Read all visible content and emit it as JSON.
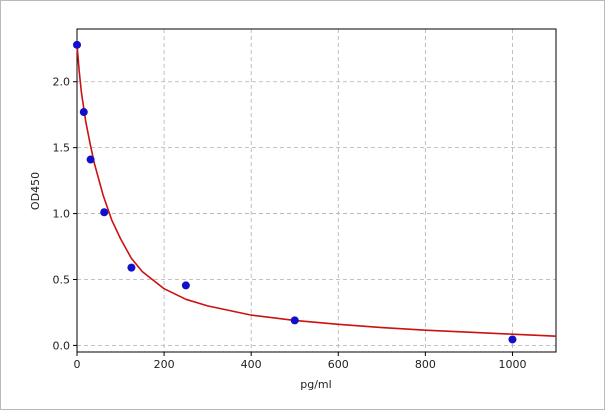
{
  "chart_data": {
    "type": "scatter",
    "title": "",
    "xlabel": "pg/ml",
    "ylabel": "OD450",
    "xlim": [
      0,
      1100
    ],
    "ylim": [
      -0.05,
      2.4
    ],
    "x_ticks": [
      0,
      200,
      400,
      600,
      800,
      1000
    ],
    "y_ticks": [
      0.0,
      0.5,
      1.0,
      1.5,
      2.0
    ],
    "x_tick_labels": [
      "0",
      "200",
      "400",
      "600",
      "800",
      "1000"
    ],
    "y_tick_labels": [
      "0.0",
      "0.5",
      "1.0",
      "1.5",
      "2.0"
    ],
    "grid": true,
    "grid_style": "dashed",
    "series": [
      {
        "type": "scatter",
        "color": "#1010cc",
        "x": [
          0,
          15.6,
          31.25,
          62.5,
          125,
          250,
          500,
          1000
        ],
        "y": [
          2.28,
          1.77,
          1.41,
          1.01,
          0.59,
          0.455,
          0.19,
          0.045
        ]
      },
      {
        "type": "line",
        "color": "#cc1111",
        "x": [
          0,
          5,
          10,
          20,
          30,
          40,
          60,
          80,
          100,
          125,
          150,
          200,
          250,
          300,
          400,
          500,
          600,
          700,
          800,
          900,
          1000,
          1100
        ],
        "y": [
          2.28,
          2.08,
          1.92,
          1.7,
          1.53,
          1.38,
          1.14,
          0.95,
          0.81,
          0.66,
          0.56,
          0.43,
          0.35,
          0.3,
          0.23,
          0.19,
          0.16,
          0.135,
          0.115,
          0.1,
          0.085,
          0.07
        ]
      }
    ]
  }
}
